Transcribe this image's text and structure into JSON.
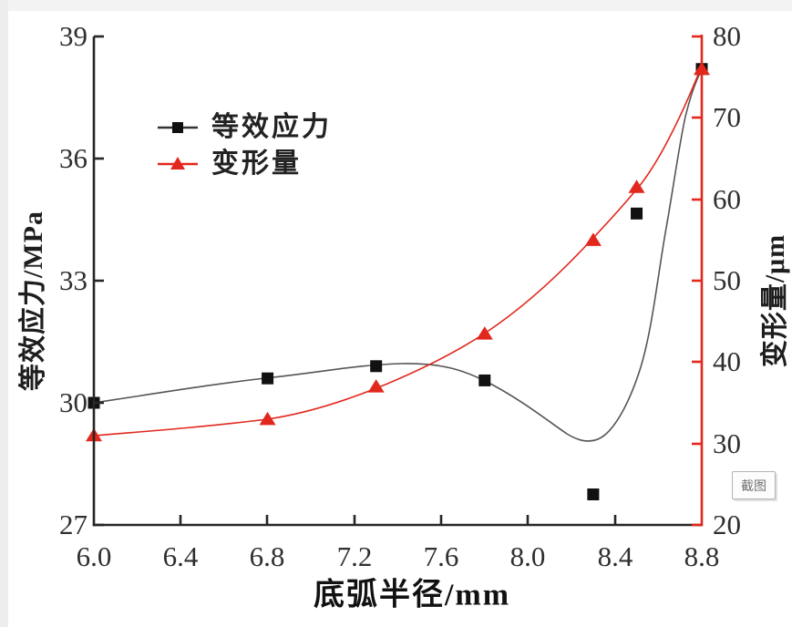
{
  "overlay": {
    "screenshot_button_label": "截图"
  },
  "chart_data": {
    "type": "line",
    "title": "",
    "xlabel": "底弧半径/mm",
    "x_tick_labels": [
      "6.0",
      "6.4",
      "6.8",
      "7.2",
      "7.6",
      "8.0",
      "8.4",
      "8.8"
    ],
    "xlim": [
      6.0,
      8.8
    ],
    "grid": false,
    "legend_position": "upper-left-inside",
    "left_axis": {
      "label": "等效应力/MPa",
      "tick_labels": [
        "39",
        "36",
        "33",
        "30",
        "27"
      ],
      "lim": [
        27,
        39
      ],
      "color": "#262626"
    },
    "right_axis": {
      "label": "变形量/μm",
      "tick_labels": [
        "80",
        "70",
        "60",
        "50",
        "40",
        "30",
        "20"
      ],
      "lim": [
        20,
        80
      ],
      "color": "#e2271c"
    },
    "series": [
      {
        "name": "等效应力",
        "axis": "left",
        "unit": "MPa",
        "marker": "square",
        "color": "#111111",
        "line_color": "#555555",
        "x": [
          6.0,
          6.8,
          7.3,
          7.8,
          8.3,
          8.5,
          8.8
        ],
        "y": [
          30.0,
          30.6,
          30.9,
          30.55,
          27.75,
          34.65,
          38.2
        ]
      },
      {
        "name": "变形量",
        "axis": "right",
        "unit": "μm",
        "marker": "triangle",
        "color": "#e2271c",
        "line_color": "#e2271c",
        "x": [
          6.0,
          6.8,
          7.3,
          7.8,
          8.3,
          8.5,
          8.8
        ],
        "y": [
          31,
          33,
          37,
          43.5,
          55,
          61.5,
          76
        ]
      }
    ]
  }
}
